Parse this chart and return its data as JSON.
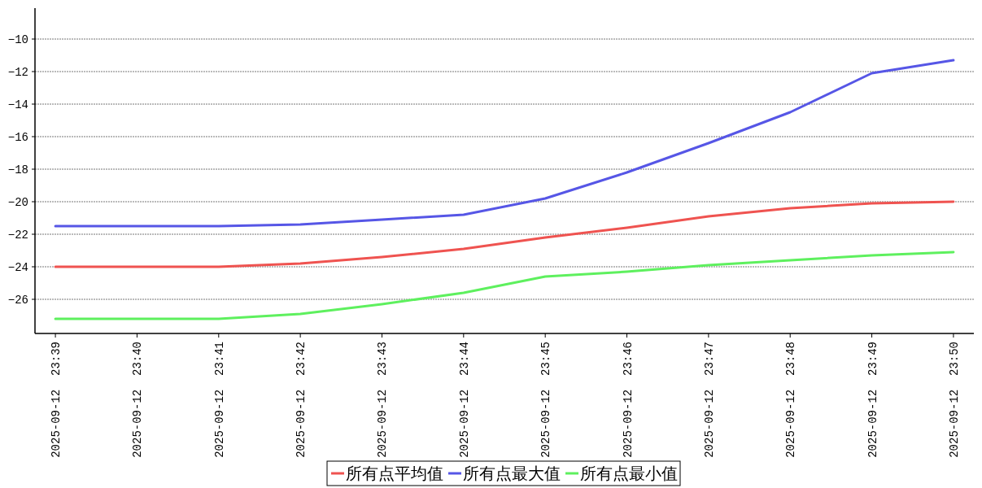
{
  "chart_data": {
    "type": "line",
    "categories": [
      "2025-09-12  23:39",
      "2025-09-12  23:40",
      "2025-09-12  23:41",
      "2025-09-12  23:42",
      "2025-09-12  23:43",
      "2025-09-12  23:44",
      "2025-09-12  23:45",
      "2025-09-12  23:46",
      "2025-09-12  23:47",
      "2025-09-12  23:48",
      "2025-09-12  23:49",
      "2025-09-12  23:50"
    ],
    "series": [
      {
        "name": "所有点平均值",
        "color": "#ef5350",
        "values": [
          -24.0,
          -24.0,
          -24.0,
          -23.8,
          -23.4,
          -22.9,
          -22.2,
          -21.6,
          -20.9,
          -20.4,
          -20.1,
          -20.0
        ]
      },
      {
        "name": "所有点最大值",
        "color": "#5656e6",
        "values": [
          -21.5,
          -21.5,
          -21.5,
          -21.4,
          -21.1,
          -20.8,
          -19.8,
          -18.2,
          -16.4,
          -14.5,
          -12.1,
          -11.3
        ]
      },
      {
        "name": "所有点最小值",
        "color": "#5ef05e",
        "values": [
          -27.2,
          -27.2,
          -27.2,
          -26.9,
          -26.3,
          -25.6,
          -24.6,
          -24.3,
          -23.9,
          -23.6,
          -23.3,
          -23.1
        ]
      }
    ],
    "ylim": [
      -28.1,
      -8.1
    ],
    "yticks": [
      -26,
      -24,
      -22,
      -20,
      -18,
      -16,
      -14,
      -12,
      -10
    ],
    "grid": "y",
    "legend": "bottom",
    "marker": "none",
    "line_style": "solid"
  }
}
